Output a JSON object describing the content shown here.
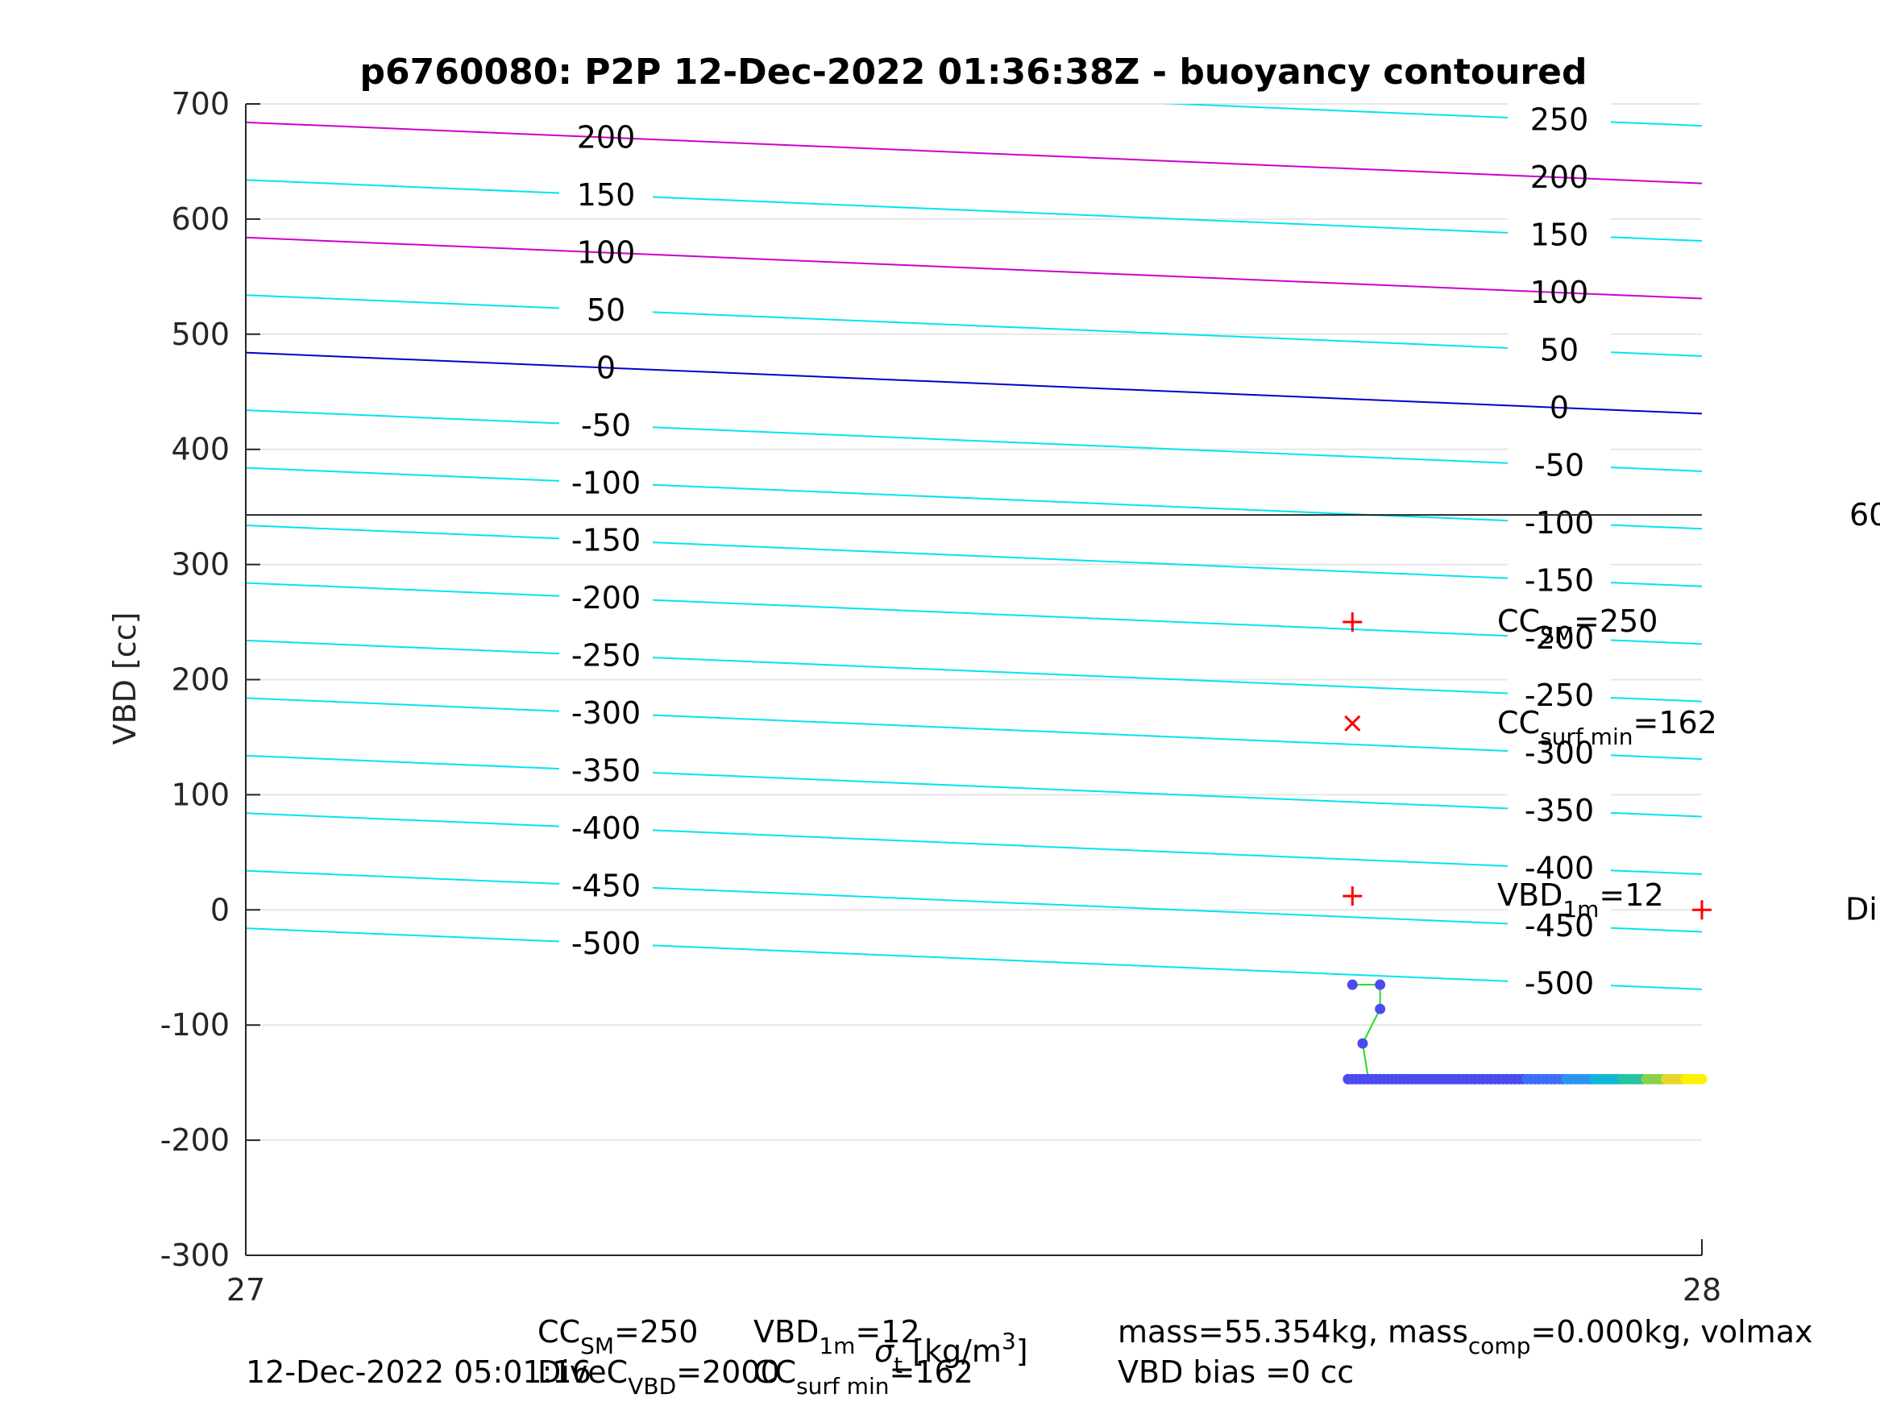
{
  "chart_data": {
    "type": "line",
    "title": "p6760080: P2P 12-Dec-2022 01:36:38Z - buoyancy contoured",
    "ylabel": "VBD [cc]",
    "xlabel_parts": {
      "base": "σ",
      "sub": "t",
      "unit": "[kg/m",
      "sup": "3",
      "close": "]"
    },
    "xlim": [
      27,
      28
    ],
    "ylim": [
      -300,
      700
    ],
    "x_ticks": [
      "27",
      "28"
    ],
    "y_ticks": [
      "-300",
      "-200",
      "-100",
      "0",
      "100",
      "200",
      "300",
      "400",
      "500",
      "600",
      "700"
    ],
    "y_tick_values": [
      -300,
      -200,
      -100,
      0,
      100,
      200,
      300,
      400,
      500,
      600,
      700
    ],
    "vbd_max_line": 343,
    "contours": {
      "levels": [
        -500,
        -450,
        -400,
        -350,
        -300,
        -250,
        -200,
        -150,
        -100,
        -50,
        0,
        50,
        100,
        150,
        200,
        250
      ],
      "left_y_at_x27": 484,
      "right_y_at_x28": 431,
      "spacing_cc": 50,
      "highlight_levels": [
        100,
        200
      ],
      "zero_level": 0,
      "colors": {
        "default": "#00e5ee",
        "highlight": "#cc00cc",
        "zero": "#0000cc"
      }
    },
    "markers": [
      {
        "label": "CC",
        "label_sub": "SM",
        "label_tail": "=250",
        "x": 27.76,
        "y": 250,
        "symbol": "+"
      },
      {
        "label": "CC",
        "label_sub": "surf min",
        "label_tail": "=162",
        "x": 27.76,
        "y": 162,
        "symbol": "x"
      },
      {
        "label": "VBD",
        "label_sub": "1m",
        "label_tail": "=12",
        "x": 27.76,
        "y": 12,
        "symbol": "+"
      },
      {
        "label": "Di",
        "label_sub": "",
        "label_tail": "",
        "x": 28.0,
        "y": 0,
        "symbol": "+"
      }
    ],
    "clipped_right_label": "60",
    "trajectory": {
      "points": [
        {
          "x": 27.76,
          "y": -65
        },
        {
          "x": 27.779,
          "y": -65
        },
        {
          "x": 27.779,
          "y": -86
        },
        {
          "x": 27.767,
          "y": -116
        },
        {
          "x": 27.771,
          "y": -147
        }
      ],
      "baseline_y": -147,
      "baseline_x_start": 27.757,
      "baseline_x_end": 28.0,
      "line_color": "#22dd22",
      "colormap": [
        "#4b4bf0",
        "#4b4bf0",
        "#3d6ef5",
        "#2a95f0",
        "#11b5d8",
        "#27c3a0",
        "#8bd04a",
        "#e8d62a",
        "#fff200"
      ]
    },
    "footer": {
      "date": "12-Dec-2022 05:01:16",
      "cc_sm": {
        "base": "CC",
        "sub": "SM",
        "tail": "=250"
      },
      "dive_c": {
        "base": "DiveC",
        "sub": "VBD",
        "tail": "=2000"
      },
      "vbd_1m": {
        "base": "VBD",
        "sub": "1m",
        "tail": "=12"
      },
      "cc_surf": {
        "base": "CC",
        "sub": "surf min",
        "tail": "=162"
      },
      "mass": {
        "pre": "mass=55.354kg, mass",
        "sub": "comp",
        "tail": "=0.000kg, volmax"
      },
      "vbd_bias": "VBD bias =0 cc"
    }
  }
}
